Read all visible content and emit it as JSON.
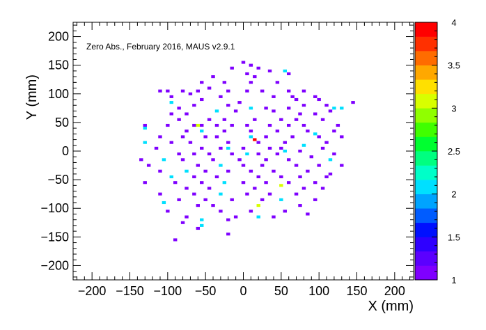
{
  "chart_data": {
    "type": "heatmap",
    "title": "",
    "annotation": "Zero Abs., February 2016, MAUS v2.9.1",
    "xlabel": "X (mm)",
    "ylabel": "Y (mm)",
    "xlim": [
      -225,
      225
    ],
    "ylim": [
      -225,
      225
    ],
    "x_ticks": [
      -200,
      -150,
      -100,
      -50,
      0,
      50,
      100,
      150,
      200
    ],
    "y_ticks": [
      -200,
      -150,
      -100,
      -50,
      0,
      50,
      100,
      150,
      200
    ],
    "bin_size_mm": 5,
    "colorbar": {
      "min": 1,
      "max": 4,
      "ticks": [
        1,
        1.5,
        2,
        2.5,
        3,
        3.5,
        4
      ],
      "colors": [
        "#7f00ff",
        "#5b00ff",
        "#2e00ff",
        "#0010ff",
        "#005cff",
        "#00a4ff",
        "#00e0ff",
        "#00ffc8",
        "#00ff80",
        "#00ff30",
        "#40ff00",
        "#90ff00",
        "#d8ff00",
        "#ffe000",
        "#ffa800",
        "#ff6c00",
        "#ff3000",
        "#ff0000"
      ]
    },
    "points": [
      {
        "x": 0,
        "y": 155,
        "v": 1
      },
      {
        "x": 10,
        "y": 150,
        "v": 1
      },
      {
        "x": -15,
        "y": 145,
        "v": 1
      },
      {
        "x": 20,
        "y": 145,
        "v": 1
      },
      {
        "x": 35,
        "y": 140,
        "v": 1
      },
      {
        "x": 55,
        "y": 140,
        "v": 2
      },
      {
        "x": 60,
        "y": 135,
        "v": 1
      },
      {
        "x": 5,
        "y": 135,
        "v": 1
      },
      {
        "x": -40,
        "y": 130,
        "v": 1
      },
      {
        "x": 15,
        "y": 130,
        "v": 1
      },
      {
        "x": -55,
        "y": 120,
        "v": 1
      },
      {
        "x": -25,
        "y": 120,
        "v": 1
      },
      {
        "x": 10,
        "y": 120,
        "v": 1
      },
      {
        "x": 45,
        "y": 120,
        "v": 1
      },
      {
        "x": -110,
        "y": 105,
        "v": 1
      },
      {
        "x": -100,
        "y": 105,
        "v": 1
      },
      {
        "x": -80,
        "y": 105,
        "v": 1
      },
      {
        "x": -60,
        "y": 105,
        "v": 1
      },
      {
        "x": -45,
        "y": 110,
        "v": 1
      },
      {
        "x": -20,
        "y": 105,
        "v": 1
      },
      {
        "x": 5,
        "y": 105,
        "v": 1
      },
      {
        "x": 25,
        "y": 105,
        "v": 1
      },
      {
        "x": 60,
        "y": 105,
        "v": 1
      },
      {
        "x": 80,
        "y": 105,
        "v": 1
      },
      {
        "x": -95,
        "y": 95,
        "v": 1
      },
      {
        "x": -70,
        "y": 100,
        "v": 1
      },
      {
        "x": -30,
        "y": 95,
        "v": 1
      },
      {
        "x": 40,
        "y": 95,
        "v": 1
      },
      {
        "x": 65,
        "y": 95,
        "v": 1
      },
      {
        "x": 95,
        "y": 95,
        "v": 1
      },
      {
        "x": -95,
        "y": 85,
        "v": 2
      },
      {
        "x": -55,
        "y": 90,
        "v": 1
      },
      {
        "x": -5,
        "y": 85,
        "v": 1
      },
      {
        "x": 70,
        "y": 90,
        "v": 1
      },
      {
        "x": 100,
        "y": 90,
        "v": 1
      },
      {
        "x": 145,
        "y": 85,
        "v": 1
      },
      {
        "x": -85,
        "y": 75,
        "v": 1
      },
      {
        "x": -65,
        "y": 80,
        "v": 1
      },
      {
        "x": -20,
        "y": 80,
        "v": 1
      },
      {
        "x": 10,
        "y": 75,
        "v": 2
      },
      {
        "x": 30,
        "y": 75,
        "v": 1
      },
      {
        "x": 60,
        "y": 75,
        "v": 1
      },
      {
        "x": 80,
        "y": 80,
        "v": 1
      },
      {
        "x": 110,
        "y": 80,
        "v": 1
      },
      {
        "x": 120,
        "y": 75,
        "v": 2
      },
      {
        "x": 130,
        "y": 75,
        "v": 2
      },
      {
        "x": -95,
        "y": 65,
        "v": 1
      },
      {
        "x": -75,
        "y": 65,
        "v": 1
      },
      {
        "x": -35,
        "y": 70,
        "v": 2
      },
      {
        "x": -10,
        "y": 70,
        "v": 1
      },
      {
        "x": 40,
        "y": 70,
        "v": 1
      },
      {
        "x": 75,
        "y": 65,
        "v": 1
      },
      {
        "x": 95,
        "y": 65,
        "v": 1
      },
      {
        "x": 115,
        "y": 70,
        "v": 1
      },
      {
        "x": -85,
        "y": 55,
        "v": 1
      },
      {
        "x": -45,
        "y": 55,
        "v": 1
      },
      {
        "x": -25,
        "y": 55,
        "v": 1
      },
      {
        "x": 15,
        "y": 55,
        "v": 1
      },
      {
        "x": 50,
        "y": 55,
        "v": 1
      },
      {
        "x": 70,
        "y": 55,
        "v": 1
      },
      {
        "x": 105,
        "y": 55,
        "v": 1
      },
      {
        "x": -130,
        "y": 45,
        "v": 1
      },
      {
        "x": -100,
        "y": 45,
        "v": 1
      },
      {
        "x": -65,
        "y": 45,
        "v": 1
      },
      {
        "x": -60,
        "y": 45,
        "v": 3
      },
      {
        "x": -55,
        "y": 45,
        "v": 1
      },
      {
        "x": -35,
        "y": 45,
        "v": 1
      },
      {
        "x": -15,
        "y": 45,
        "v": 1
      },
      {
        "x": 5,
        "y": 45,
        "v": 1
      },
      {
        "x": 35,
        "y": 45,
        "v": 1
      },
      {
        "x": 60,
        "y": 45,
        "v": 1
      },
      {
        "x": 80,
        "y": 45,
        "v": 1
      },
      {
        "x": 125,
        "y": 45,
        "v": 1
      },
      {
        "x": -130,
        "y": 40,
        "v": 2
      },
      {
        "x": -75,
        "y": 35,
        "v": 1
      },
      {
        "x": -55,
        "y": 35,
        "v": 2
      },
      {
        "x": -25,
        "y": 35,
        "v": 1
      },
      {
        "x": 10,
        "y": 35,
        "v": 1
      },
      {
        "x": 45,
        "y": 35,
        "v": 1
      },
      {
        "x": 85,
        "y": 35,
        "v": 1
      },
      {
        "x": 95,
        "y": 30,
        "v": 2
      },
      {
        "x": 120,
        "y": 35,
        "v": 1
      },
      {
        "x": -110,
        "y": 25,
        "v": 1
      },
      {
        "x": -80,
        "y": 25,
        "v": 1
      },
      {
        "x": -50,
        "y": 25,
        "v": 1
      },
      {
        "x": -35,
        "y": 25,
        "v": 1
      },
      {
        "x": 10,
        "y": 25,
        "v": 2
      },
      {
        "x": 15,
        "y": 20,
        "v": 4
      },
      {
        "x": 30,
        "y": 25,
        "v": 1
      },
      {
        "x": 65,
        "y": 25,
        "v": 1
      },
      {
        "x": 100,
        "y": 25,
        "v": 1
      },
      {
        "x": 130,
        "y": 25,
        "v": 1
      },
      {
        "x": -130,
        "y": 15,
        "v": 2
      },
      {
        "x": -95,
        "y": 15,
        "v": 1
      },
      {
        "x": -70,
        "y": 15,
        "v": 1
      },
      {
        "x": -20,
        "y": 15,
        "v": 1
      },
      {
        "x": 20,
        "y": 15,
        "v": 1
      },
      {
        "x": 55,
        "y": 15,
        "v": 1
      },
      {
        "x": 80,
        "y": 10,
        "v": 2
      },
      {
        "x": 110,
        "y": 15,
        "v": 1
      },
      {
        "x": -115,
        "y": 5,
        "v": 1
      },
      {
        "x": -55,
        "y": 5,
        "v": 1
      },
      {
        "x": -30,
        "y": 5,
        "v": 1
      },
      {
        "x": -20,
        "y": 5,
        "v": 2
      },
      {
        "x": 0,
        "y": 5,
        "v": 1
      },
      {
        "x": 35,
        "y": 5,
        "v": 1
      },
      {
        "x": 50,
        "y": 5,
        "v": 1
      },
      {
        "x": 55,
        "y": 0,
        "v": 2
      },
      {
        "x": 75,
        "y": 0,
        "v": 1
      },
      {
        "x": 105,
        "y": 5,
        "v": 1
      },
      {
        "x": -85,
        "y": -5,
        "v": 1
      },
      {
        "x": -65,
        "y": -5,
        "v": 1
      },
      {
        "x": -45,
        "y": -5,
        "v": 1
      },
      {
        "x": -15,
        "y": -5,
        "v": 1
      },
      {
        "x": 5,
        "y": -5,
        "v": 2
      },
      {
        "x": 20,
        "y": -5,
        "v": 1
      },
      {
        "x": 45,
        "y": -5,
        "v": 1
      },
      {
        "x": 120,
        "y": -5,
        "v": 1
      },
      {
        "x": -135,
        "y": -15,
        "v": 1
      },
      {
        "x": -105,
        "y": -15,
        "v": 2
      },
      {
        "x": -80,
        "y": -15,
        "v": 1
      },
      {
        "x": -40,
        "y": -15,
        "v": 1
      },
      {
        "x": -5,
        "y": -15,
        "v": 1
      },
      {
        "x": 30,
        "y": -15,
        "v": 1
      },
      {
        "x": 60,
        "y": -15,
        "v": 1
      },
      {
        "x": 90,
        "y": -10,
        "v": 1
      },
      {
        "x": 115,
        "y": -15,
        "v": 2
      },
      {
        "x": -125,
        "y": -25,
        "v": 1
      },
      {
        "x": -60,
        "y": -25,
        "v": 1
      },
      {
        "x": -30,
        "y": -25,
        "v": 2
      },
      {
        "x": 0,
        "y": -25,
        "v": 1
      },
      {
        "x": 25,
        "y": -25,
        "v": 1
      },
      {
        "x": 70,
        "y": -25,
        "v": 1
      },
      {
        "x": 100,
        "y": -25,
        "v": 1
      },
      {
        "x": 130,
        "y": -25,
        "v": 1
      },
      {
        "x": -110,
        "y": -35,
        "v": 1
      },
      {
        "x": -75,
        "y": -35,
        "v": 2
      },
      {
        "x": -50,
        "y": -35,
        "v": 1
      },
      {
        "x": -20,
        "y": -35,
        "v": 1
      },
      {
        "x": 10,
        "y": -35,
        "v": 1
      },
      {
        "x": 40,
        "y": -35,
        "v": 1
      },
      {
        "x": 85,
        "y": -35,
        "v": 1
      },
      {
        "x": 115,
        "y": -40,
        "v": 1
      },
      {
        "x": -95,
        "y": -45,
        "v": 2
      },
      {
        "x": -65,
        "y": -45,
        "v": 1
      },
      {
        "x": -35,
        "y": -45,
        "v": 1
      },
      {
        "x": 20,
        "y": -45,
        "v": 1
      },
      {
        "x": 50,
        "y": -45,
        "v": 1
      },
      {
        "x": 75,
        "y": -45,
        "v": 1
      },
      {
        "x": 110,
        "y": -45,
        "v": 1
      },
      {
        "x": -130,
        "y": -55,
        "v": 1
      },
      {
        "x": -90,
        "y": -55,
        "v": 1
      },
      {
        "x": -55,
        "y": -55,
        "v": 1
      },
      {
        "x": -25,
        "y": -55,
        "v": 2
      },
      {
        "x": 0,
        "y": -55,
        "v": 1
      },
      {
        "x": 30,
        "y": -55,
        "v": 1
      },
      {
        "x": 60,
        "y": -55,
        "v": 1
      },
      {
        "x": 95,
        "y": -55,
        "v": 1
      },
      {
        "x": -75,
        "y": -65,
        "v": 1
      },
      {
        "x": -45,
        "y": -65,
        "v": 1
      },
      {
        "x": 15,
        "y": -65,
        "v": 1
      },
      {
        "x": 50,
        "y": -60,
        "v": 3
      },
      {
        "x": 80,
        "y": -65,
        "v": 1
      },
      {
        "x": 105,
        "y": -65,
        "v": 1
      },
      {
        "x": -110,
        "y": -75,
        "v": 1
      },
      {
        "x": -65,
        "y": -75,
        "v": 1
      },
      {
        "x": -30,
        "y": -75,
        "v": 2
      },
      {
        "x": 5,
        "y": -75,
        "v": 1
      },
      {
        "x": 35,
        "y": -75,
        "v": 1
      },
      {
        "x": 70,
        "y": -75,
        "v": 1
      },
      {
        "x": -85,
        "y": -85,
        "v": 1
      },
      {
        "x": -50,
        "y": -85,
        "v": 1
      },
      {
        "x": -15,
        "y": -85,
        "v": 1
      },
      {
        "x": 25,
        "y": -85,
        "v": 1
      },
      {
        "x": 50,
        "y": -85,
        "v": 2
      },
      {
        "x": 95,
        "y": -85,
        "v": 1
      },
      {
        "x": -105,
        "y": -90,
        "v": 2
      },
      {
        "x": -60,
        "y": -95,
        "v": 1
      },
      {
        "x": -40,
        "y": -95,
        "v": 1
      },
      {
        "x": 20,
        "y": -95,
        "v": 3
      },
      {
        "x": 75,
        "y": -95,
        "v": 1
      },
      {
        "x": -100,
        "y": -105,
        "v": 1
      },
      {
        "x": -30,
        "y": -105,
        "v": 1
      },
      {
        "x": 10,
        "y": -105,
        "v": 1
      },
      {
        "x": 55,
        "y": -105,
        "v": 1
      },
      {
        "x": 85,
        "y": -110,
        "v": 1
      },
      {
        "x": -75,
        "y": -115,
        "v": 1
      },
      {
        "x": -10,
        "y": -115,
        "v": 1
      },
      {
        "x": 20,
        "y": -115,
        "v": 2
      },
      {
        "x": 40,
        "y": -115,
        "v": 1
      },
      {
        "x": -55,
        "y": -120,
        "v": 2
      },
      {
        "x": -20,
        "y": -120,
        "v": 1
      },
      {
        "x": -80,
        "y": -125,
        "v": 1
      },
      {
        "x": -55,
        "y": -130,
        "v": 2
      },
      {
        "x": -60,
        "y": -135,
        "v": 1
      },
      {
        "x": -20,
        "y": -145,
        "v": 1
      },
      {
        "x": -90,
        "y": -155,
        "v": 1
      }
    ]
  }
}
